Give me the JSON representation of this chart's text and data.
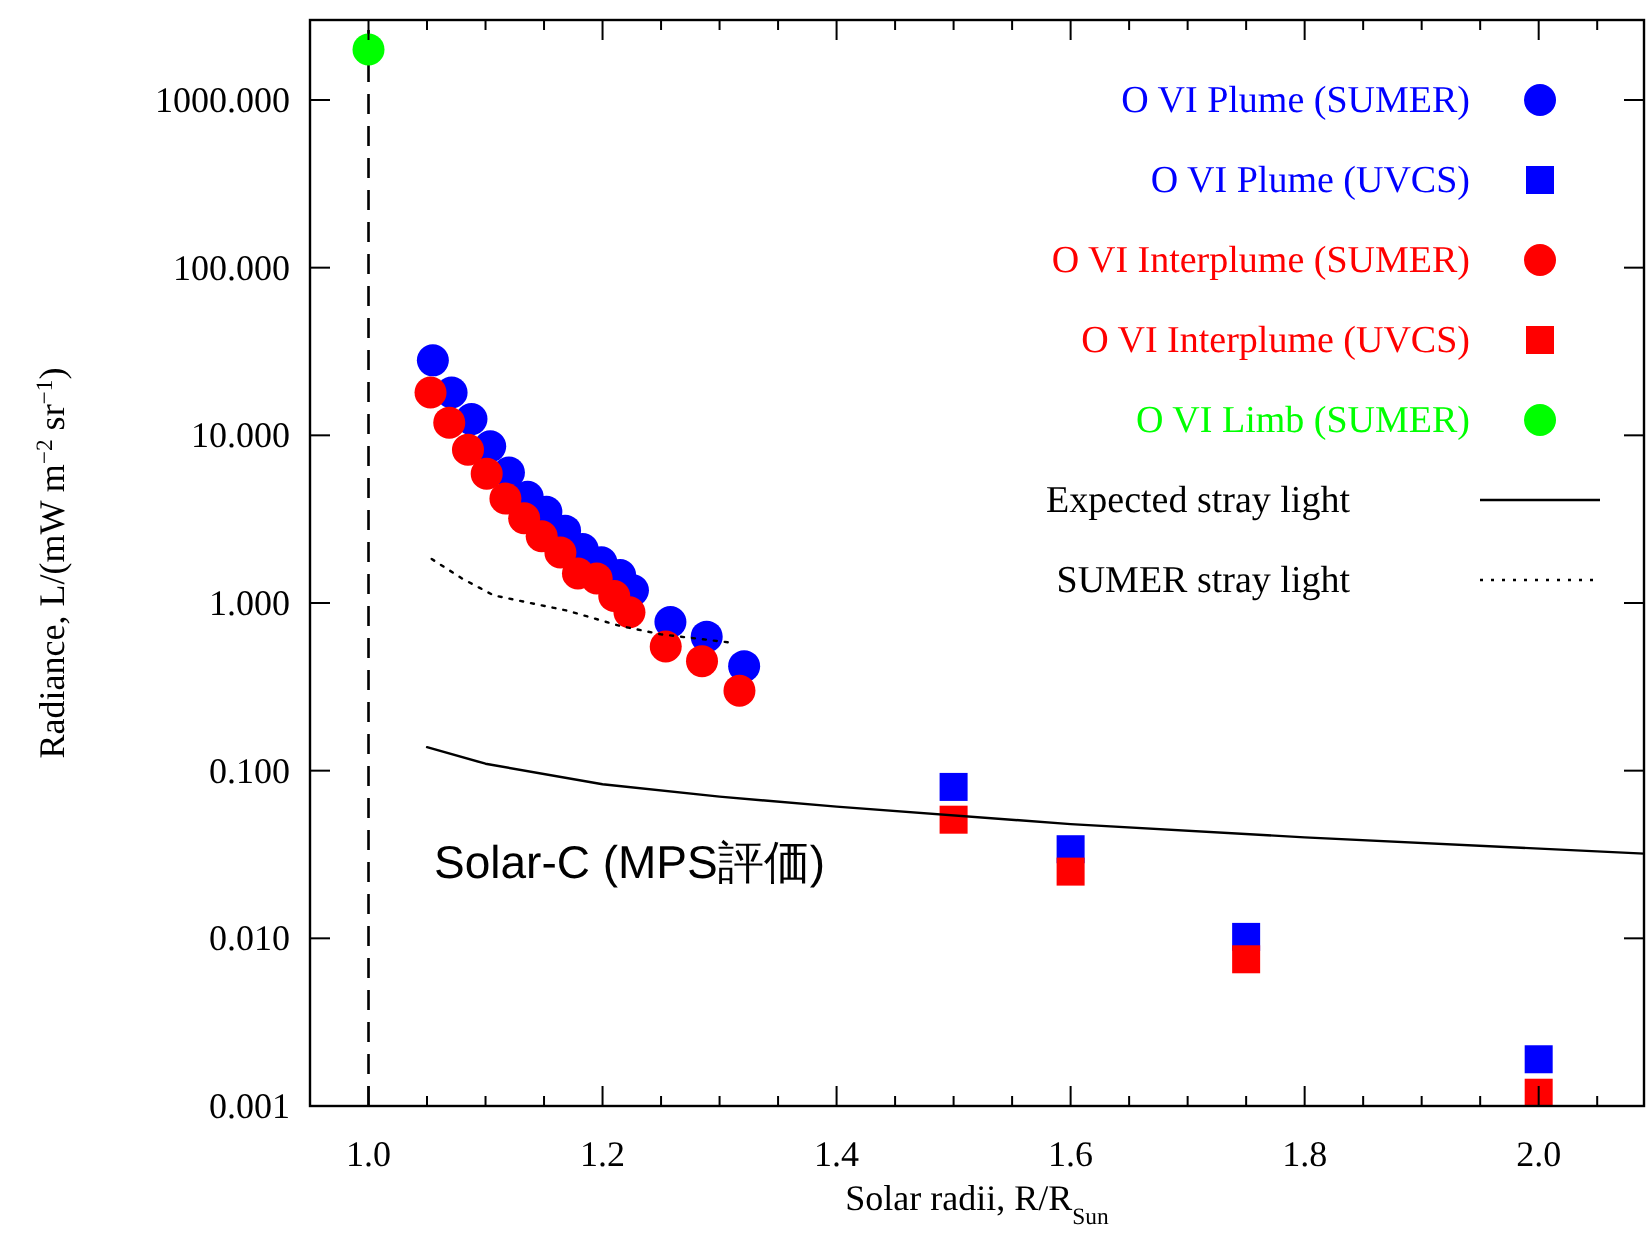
{
  "chart_data": {
    "type": "scatter",
    "xlabel": "Solar radii, R/R$_{Sun}$",
    "ylabel": "Radiance, L/(mW m$^{−2}$ sr$^{−1}$)",
    "log": "y",
    "xlim": [
      0.95,
      2.09
    ],
    "ylim": [
      0.001,
      3000
    ],
    "xticks": [
      {
        "value": 1,
        "label": "1.0"
      },
      {
        "value": 1.05,
        "label": null
      },
      {
        "value": 1.1,
        "label": null
      },
      {
        "value": 1.15,
        "label": null
      },
      1.2,
      {
        "value": 1.25,
        "label": null
      },
      {
        "value": 1.3,
        "label": null
      },
      {
        "value": 1.35,
        "label": null
      },
      1.4,
      {
        "value": 1.45,
        "label": null
      },
      {
        "value": 1.5,
        "label": null
      },
      {
        "value": 1.55,
        "label": null
      },
      1.6,
      {
        "value": 1.65,
        "label": null
      },
      {
        "value": 1.7,
        "label": null
      },
      {
        "value": 1.75,
        "label": null
      },
      1.8,
      {
        "value": 1.85,
        "label": null
      },
      {
        "value": 1.9,
        "label": null
      },
      {
        "value": 1.95,
        "label": null
      },
      {
        "value": 2,
        "label": "2.0"
      },
      {
        "value": 2.05,
        "label": null
      }
    ],
    "yticks": [
      {
        "value": 0.001,
        "label": "0.001"
      },
      {
        "value": 0.01,
        "label": "0.010"
      },
      {
        "value": 0.1,
        "label": "0.100"
      },
      {
        "value": 1,
        "label": "1.000"
      },
      {
        "value": 10,
        "label": "10.000"
      },
      {
        "value": 100,
        "label": "100.000"
      },
      {
        "value": 1000,
        "label": "1000.000"
      }
    ],
    "legend": "top right",
    "series": [
      {
        "name": "O VI Plume (SUMER)",
        "color": "#0000ff",
        "marker": "circle",
        "x": [
          1.055,
          1.071,
          1.088,
          1.104,
          1.12,
          1.136,
          1.152,
          1.168,
          1.183,
          1.199,
          1.215,
          1.226,
          1.258,
          1.289,
          1.321
        ],
        "values": [
          28,
          18,
          12.5,
          8.6,
          6,
          4.3,
          3.5,
          2.7,
          2.1,
          1.75,
          1.47,
          1.19,
          0.77,
          0.63,
          0.42
        ]
      },
      {
        "name": "O VI Plume (UVCS)",
        "color": "#0000ff",
        "marker": "square",
        "x": [
          1.5,
          1.6,
          1.75,
          2.0
        ],
        "values": [
          0.08,
          0.034,
          0.0102,
          0.0019
        ]
      },
      {
        "name": "O VI Interplume (SUMER)",
        "color": "#ff0000",
        "marker": "circle",
        "x": [
          1.053,
          1.069,
          1.085,
          1.101,
          1.117,
          1.133,
          1.148,
          1.164,
          1.179,
          1.195,
          1.21,
          1.223,
          1.254,
          1.285,
          1.317
        ],
        "values": [
          18,
          11.9,
          8.2,
          5.9,
          4.2,
          3.2,
          2.5,
          2,
          1.5,
          1.4,
          1.1,
          0.88,
          0.55,
          0.45,
          0.3
        ]
      },
      {
        "name": "O VI Interplume (UVCS)",
        "color": "#ff0000",
        "marker": "square",
        "x": [
          1.5,
          1.6,
          1.75,
          2.0
        ],
        "values": [
          0.051,
          0.025,
          0.0075,
          0.0012
        ]
      },
      {
        "name": "O VI Limb (SUMER)",
        "color": "#00ff00",
        "marker": "circle",
        "x": [
          1.0
        ],
        "values": [
          2000
        ]
      },
      {
        "name": "Expected stray light",
        "type": "line",
        "color": "#000000",
        "line_style": "solid",
        "x": [
          1.05,
          1.1,
          1.2,
          1.3,
          1.4,
          1.6,
          1.8,
          2.09
        ],
        "values": [
          0.138,
          0.11,
          0.083,
          0.07,
          0.061,
          0.048,
          0.04,
          0.032
        ]
      },
      {
        "name": "SUMER stray light",
        "type": "line",
        "color": "#000000",
        "line_style": "dotted",
        "x": [
          1.054,
          1.08,
          1.107,
          1.17,
          1.215,
          1.25,
          1.31
        ],
        "values": [
          1.83,
          1.4,
          1.11,
          0.9,
          0.73,
          0.65,
          0.58
        ]
      }
    ],
    "ref_lines": [
      {
        "axis": "x",
        "value": 1.0,
        "color": "#000000",
        "line_style": "dashed"
      }
    ],
    "annotations": [
      "Solar-C (MPS評価)"
    ]
  }
}
